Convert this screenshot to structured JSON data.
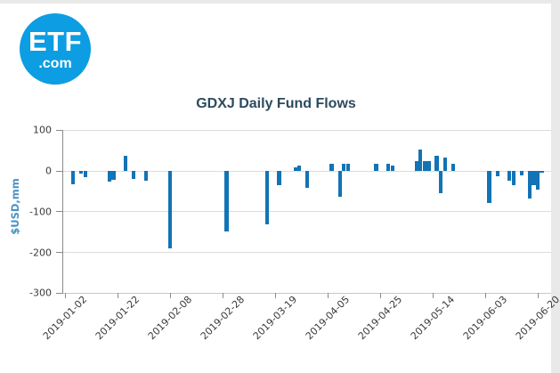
{
  "page": {
    "background_color": "#e9e9e9",
    "card_color": "#ffffff"
  },
  "logo": {
    "text": "ETF",
    "subtext": ".com",
    "circle_color": "#0d9de2",
    "text_color": "#ffffff"
  },
  "chart_data": {
    "type": "bar",
    "title": "GDXJ Daily Fund Flows",
    "xlabel": "",
    "ylabel": "$USD,mm",
    "ylim": [
      -300,
      100
    ],
    "grid": true,
    "legend": "none",
    "bar_color": "#1273b5",
    "title_color": "#2c4a5e",
    "ylabel_color": "#4a90c3",
    "tick_label_color": "#3a3a3a",
    "grid_color": "#dcdcdc",
    "baseline_color": "#c8c8c8",
    "axis_color": "#8a8a8a",
    "yticks": [
      100,
      0,
      -100,
      -200,
      -300
    ],
    "xticks": [
      {
        "day": 0,
        "label": "2019-01-02"
      },
      {
        "day": 13,
        "label": "2019-01-22"
      },
      {
        "day": 26,
        "label": "2019-02-08"
      },
      {
        "day": 39,
        "label": "2019-02-28"
      },
      {
        "day": 52,
        "label": "2019-03-19"
      },
      {
        "day": 65,
        "label": "2019-04-05"
      },
      {
        "day": 78,
        "label": "2019-04-25"
      },
      {
        "day": 91,
        "label": "2019-05-14"
      },
      {
        "day": 104,
        "label": "2019-06-03"
      },
      {
        "day": 117,
        "label": "2019-06-20"
      }
    ],
    "days_total": 119,
    "bars": [
      {
        "date": "2019-01-04",
        "day": 2,
        "value": -32
      },
      {
        "date": "2019-01-08",
        "day": 4,
        "value": -7
      },
      {
        "date": "2019-01-09",
        "day": 5,
        "value": -15
      },
      {
        "date": "2019-01-17",
        "day": 11,
        "value": -27
      },
      {
        "date": "2019-01-18",
        "day": 12,
        "value": -22
      },
      {
        "date": "2019-01-24",
        "day": 15,
        "value": 38
      },
      {
        "date": "2019-01-28",
        "day": 17,
        "value": -19
      },
      {
        "date": "2019-01-31",
        "day": 20,
        "value": -23
      },
      {
        "date": "2019-02-08",
        "day": 26,
        "value": -190
      },
      {
        "date": "2019-03-01",
        "day": 40,
        "value": -148
      },
      {
        "date": "2019-03-15",
        "day": 50,
        "value": -132
      },
      {
        "date": "2019-03-20",
        "day": 53,
        "value": -36
      },
      {
        "date": "2019-03-26",
        "day": 57,
        "value": 8
      },
      {
        "date": "2019-03-27",
        "day": 58,
        "value": 13
      },
      {
        "date": "2019-03-29",
        "day": 60,
        "value": -42
      },
      {
        "date": "2019-04-08",
        "day": 66,
        "value": 17
      },
      {
        "date": "2019-04-10",
        "day": 68,
        "value": -63
      },
      {
        "date": "2019-04-11",
        "day": 69,
        "value": 17
      },
      {
        "date": "2019-04-12",
        "day": 70,
        "value": 17
      },
      {
        "date": "2019-04-24",
        "day": 77,
        "value": 17
      },
      {
        "date": "2019-04-29",
        "day": 80,
        "value": 17
      },
      {
        "date": "2019-04-30",
        "day": 81,
        "value": 13
      },
      {
        "date": "2019-05-08",
        "day": 87,
        "value": 24
      },
      {
        "date": "2019-05-09",
        "day": 88,
        "value": 53
      },
      {
        "date": "2019-05-10",
        "day": 89,
        "value": 24
      },
      {
        "date": "2019-05-13",
        "day": 90,
        "value": 24
      },
      {
        "date": "2019-05-15",
        "day": 92,
        "value": 37
      },
      {
        "date": "2019-05-16",
        "day": 93,
        "value": -55
      },
      {
        "date": "2019-05-17",
        "day": 94,
        "value": 33
      },
      {
        "date": "2019-05-21",
        "day": 96,
        "value": 17
      },
      {
        "date": "2019-06-04",
        "day": 105,
        "value": -78
      },
      {
        "date": "2019-06-06",
        "day": 107,
        "value": -13
      },
      {
        "date": "2019-06-11",
        "day": 110,
        "value": -24
      },
      {
        "date": "2019-06-12",
        "day": 111,
        "value": -35
      },
      {
        "date": "2019-06-14",
        "day": 113,
        "value": -11
      },
      {
        "date": "2019-06-18",
        "day": 115,
        "value": -67
      },
      {
        "date": "2019-06-19",
        "day": 116,
        "value": -35
      },
      {
        "date": "2019-06-20",
        "day": 117,
        "value": -45
      },
      {
        "date": "2019-06-21",
        "day": 118,
        "value": -5
      }
    ]
  }
}
